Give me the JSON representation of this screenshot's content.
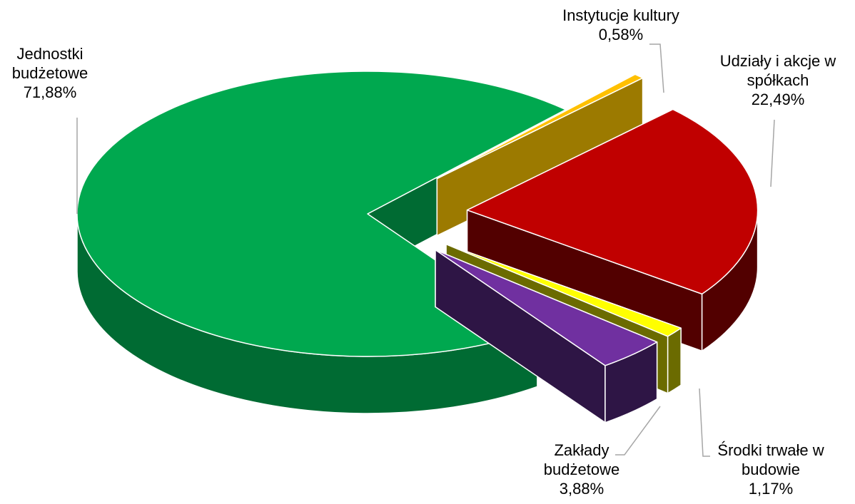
{
  "chart_data": {
    "type": "pie",
    "categories": [
      "Jednostki budżetowe",
      "Zakłady budżetowe",
      "Środki trwałe w budowie",
      "Udziały i akcje w spółkach",
      "Instytucje kultury"
    ],
    "values": [
      71.88,
      3.88,
      1.17,
      22.49,
      0.58
    ],
    "value_labels": [
      "71,88%",
      "3,88%",
      "1,17%",
      "22,49%",
      "0,58%"
    ],
    "colors": [
      "#00a84f",
      "#7030a0",
      "#ffff00",
      "#c00000",
      "#ffc000"
    ],
    "side_colors": [
      "#006b33",
      "#2e1545",
      "#6b6b00",
      "#520000",
      "#9c7a00"
    ]
  }
}
